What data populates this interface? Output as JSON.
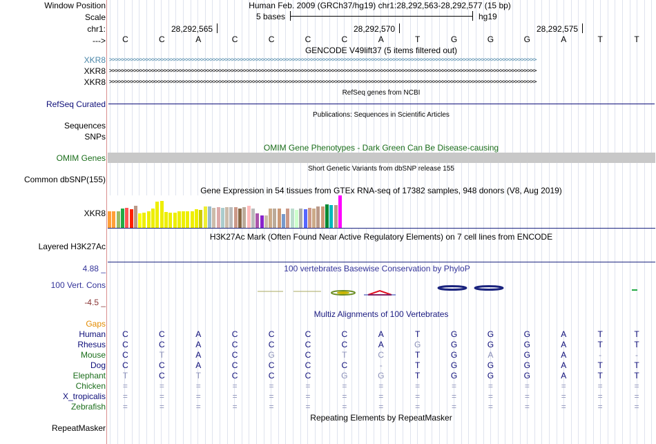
{
  "header": {
    "window_position_label": "Window Position",
    "window_position_value": "Human Feb. 2009 (GRCh37/hg19)   chr1:28,292,563-28,292,577 (15 bp)",
    "scale_label": "Scale",
    "scale_value": "5 bases",
    "scale_assembly": "hg19",
    "chrom_label": "chr1:",
    "arrow_label": "--->",
    "coords": [
      "28,292,565",
      "28,292,570",
      "28,292,575"
    ]
  },
  "sequence": [
    "C",
    "C",
    "A",
    "C",
    "C",
    "C",
    "C",
    "A",
    "T",
    "G",
    "G",
    "G",
    "A",
    "T",
    "T"
  ],
  "tracks": {
    "gencode": {
      "title": "GENCODE V49lift37 (5 items filtered out)",
      "genes": [
        "XKR8",
        "XKR8",
        "XKR8"
      ],
      "first_color": "#4a86a8",
      "color": "#000000"
    },
    "refseq": {
      "title": "RefSeq genes from NCBI",
      "label": "RefSeq Curated",
      "color": "#0c0c78"
    },
    "publications": {
      "title": "Publications: Sequences in Scientific Articles",
      "labels": [
        "Sequences",
        "SNPs"
      ]
    },
    "omim": {
      "title": "OMIM Gene Phenotypes - Dark Green Can Be Disease-causing",
      "label": "OMIM Genes",
      "color": "#1a6d1a",
      "bar_color": "#c8c8c8"
    },
    "dbsnp": {
      "title": "Short Genetic Variants from dbSNP release 155",
      "label": "Common dbSNP(155)"
    },
    "gtex": {
      "title": "Gene Expression in 54 tissues from GTEx RNA-seq of 17382 samples, 948 donors (V8, Aug 2019)",
      "label": "XKR8",
      "bars": [
        {
          "color": "#ff9f38",
          "level": 0.52
        },
        {
          "color": "#ff9f38",
          "level": 0.52
        },
        {
          "color": "#99bb66",
          "level": 0.5
        },
        {
          "color": "#22aa44",
          "level": 0.6
        },
        {
          "color": "#ff5555",
          "level": 0.62
        },
        {
          "color": "#ff2200",
          "level": 0.58
        },
        {
          "color": "#bb9988",
          "level": 0.68
        },
        {
          "color": "#ffff00",
          "level": 0.44
        },
        {
          "color": "#eeee00",
          "level": 0.46
        },
        {
          "color": "#eeee00",
          "level": 0.52
        },
        {
          "color": "#eeee00",
          "level": 0.6
        },
        {
          "color": "#eeee00",
          "level": 0.8
        },
        {
          "color": "#eeee00",
          "level": 0.83
        },
        {
          "color": "#eeee00",
          "level": 0.48
        },
        {
          "color": "#eeee00",
          "level": 0.46
        },
        {
          "color": "#eeee00",
          "level": 0.46
        },
        {
          "color": "#eeee00",
          "level": 0.5
        },
        {
          "color": "#eeee00",
          "level": 0.5
        },
        {
          "color": "#eeee00",
          "level": 0.5
        },
        {
          "color": "#eeee00",
          "level": 0.52
        },
        {
          "color": "#eeee00",
          "level": 0.58
        },
        {
          "color": "#cccc00",
          "level": 0.56
        },
        {
          "color": "#eeee33",
          "level": 0.66
        },
        {
          "color": "#99bbcc",
          "level": 0.66
        },
        {
          "color": "#ccbbaa",
          "level": 0.62
        },
        {
          "color": "#ddaaaa",
          "level": 0.64
        },
        {
          "color": "#aacccc",
          "level": 0.62
        },
        {
          "color": "#ccbbaa",
          "level": 0.64
        },
        {
          "color": "#bbbbbb",
          "level": 0.64
        },
        {
          "color": "#cc9988",
          "level": 0.64
        },
        {
          "color": "#886644",
          "level": 0.6
        },
        {
          "color": "#bbaa99",
          "level": 0.64
        },
        {
          "color": "#ffbbbb",
          "level": 0.68
        },
        {
          "color": "#bbbbbb",
          "level": 0.6
        },
        {
          "color": "#aa55aa",
          "level": 0.44
        },
        {
          "color": "#8822cc",
          "level": 0.38
        },
        {
          "color": "#ccbbaa",
          "level": 0.38
        },
        {
          "color": "#ccaa88",
          "level": 0.6
        },
        {
          "color": "#bbaa99",
          "level": 0.6
        },
        {
          "color": "#cc9977",
          "level": 0.6
        },
        {
          "color": "#7799cc",
          "level": 0.42
        },
        {
          "color": "#cc9988",
          "level": 0.6
        },
        {
          "color": "#bbddcc",
          "level": 0.6
        },
        {
          "color": "#ccffcc",
          "level": 0.56
        },
        {
          "color": "#aaaaaa",
          "level": 0.6
        },
        {
          "color": "#5566ff",
          "level": 0.58
        },
        {
          "color": "#cc9988",
          "level": 0.62
        },
        {
          "color": "#ccaa88",
          "level": 0.6
        },
        {
          "color": "#bb9988",
          "level": 0.66
        },
        {
          "color": "#cc9977",
          "level": 0.66
        },
        {
          "color": "#008833",
          "level": 0.72
        },
        {
          "color": "#00bbbb",
          "level": 0.7
        },
        {
          "color": "#bb9988",
          "level": 0.7
        },
        {
          "color": "#ff00ff",
          "level": 1.0
        }
      ]
    },
    "h3k27ac": {
      "title": "H3K27Ac Mark (Often Found Near Active Regulatory Elements) on 7 cell lines from ENCODE",
      "label": "Layered H3K27Ac",
      "axis_color": "#1a237e"
    },
    "phylop": {
      "title": "100 vertebrates Basewise Conservation by PhyloP",
      "label": "100 Vert. Cons",
      "ymax": "4.88 _",
      "ymin": "-4.5 _",
      "title_color": "#333399",
      "max_color": "#333399",
      "min_color": "#883333"
    },
    "multiz": {
      "title": "Multiz Alignments of 100 Vertebrates",
      "title_color": "#1a1a80",
      "gaps_label": "Gaps",
      "gaps_color": "#e38b00",
      "species": [
        {
          "name": "Human",
          "color": "#0c0c78",
          "bases": [
            "C",
            "C",
            "A",
            "C",
            "C",
            "C",
            "C",
            "A",
            "T",
            "G",
            "G",
            "G",
            "A",
            "T",
            "T"
          ]
        },
        {
          "name": "Rhesus",
          "color": "#0c0c78",
          "bases": [
            "C",
            "C",
            "A",
            "C",
            "C",
            "C",
            "C",
            "A",
            "G",
            "G",
            "G",
            "G",
            "A",
            "T",
            "T"
          ]
        },
        {
          "name": "Mouse",
          "color": "#1a6d1a",
          "bases": [
            "C",
            "T",
            "A",
            "C",
            "G",
            "C",
            "T",
            "C",
            "T",
            "G",
            "A",
            "G",
            "A",
            "-",
            "-"
          ]
        },
        {
          "name": "Dog",
          "color": "#0c0c78",
          "bases": [
            "C",
            "C",
            "A",
            "C",
            "C",
            "C",
            "C",
            "-",
            "T",
            "G",
            "G",
            "G",
            "A",
            "T",
            "T"
          ]
        },
        {
          "name": "Elephant",
          "color": "#1a6d1a",
          "bases": [
            "T",
            "C",
            "T",
            "C",
            "C",
            "C",
            "G",
            "G",
            "T",
            "G",
            "G",
            "G",
            "A",
            "T",
            "T"
          ]
        },
        {
          "name": "Chicken",
          "color": "#1a6d1a",
          "bases": [
            "=",
            "=",
            "=",
            "=",
            "=",
            "=",
            "=",
            "=",
            "=",
            "=",
            "=",
            "=",
            "=",
            "=",
            "="
          ]
        },
        {
          "name": "X_tropicalis",
          "color": "#0c0c78",
          "bases": [
            "=",
            "=",
            "=",
            "=",
            "=",
            "=",
            "=",
            "=",
            "=",
            "=",
            "=",
            "=",
            "=",
            "=",
            "="
          ]
        },
        {
          "name": "Zebrafish",
          "color": "#1a6d1a",
          "bases": [
            "=",
            "=",
            "=",
            "=",
            "=",
            "=",
            "=",
            "=",
            "=",
            "=",
            "=",
            "=",
            "=",
            "=",
            "="
          ]
        }
      ]
    },
    "repeatmasker": {
      "title": "Repeating Elements by RepeatMasker",
      "label": "RepeatMasker"
    }
  }
}
